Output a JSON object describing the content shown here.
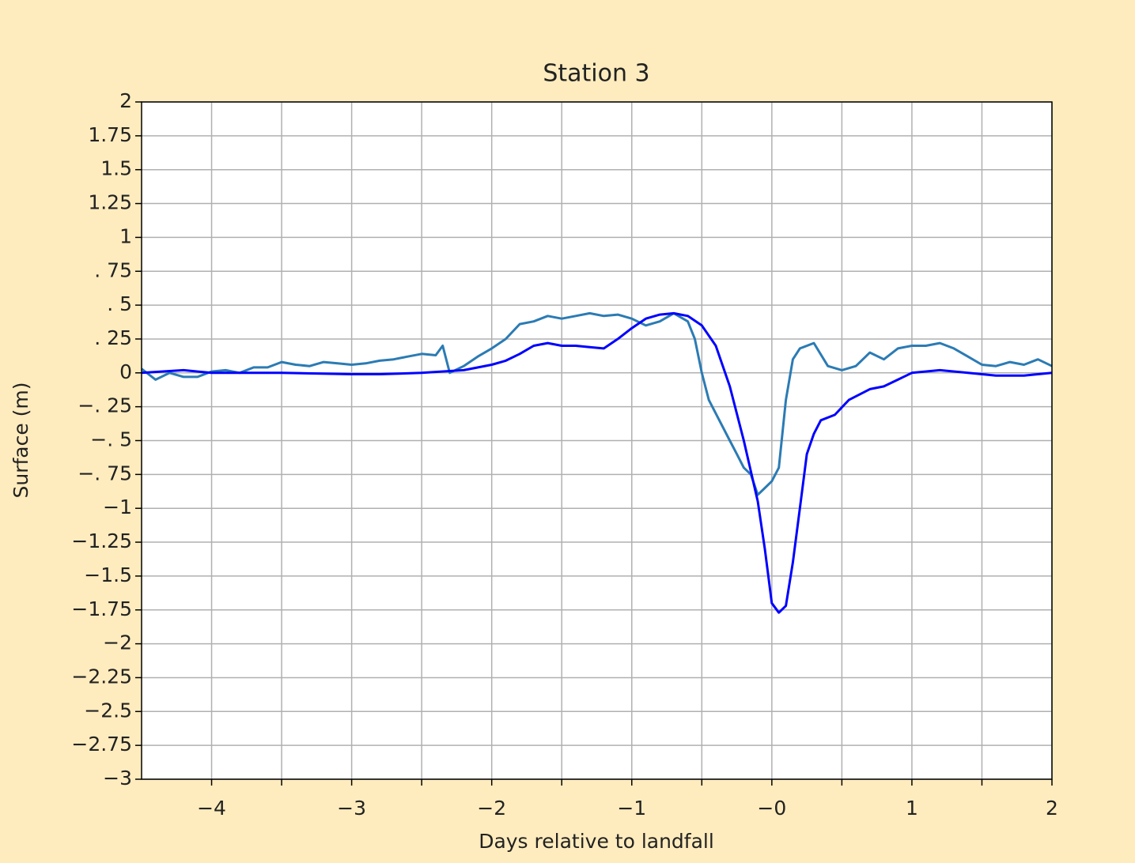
{
  "chart_data": {
    "type": "line",
    "title": "Station 3",
    "xlabel": "Days relative to landfall",
    "ylabel": "Surface (m)",
    "xlim": [
      -4.5,
      2
    ],
    "ylim": [
      -3,
      2
    ],
    "xticks": [
      {
        "value": -4,
        "label": "−4"
      },
      {
        "value": -3,
        "label": "−3"
      },
      {
        "value": -2,
        "label": "−2"
      },
      {
        "value": -1,
        "label": "−1"
      },
      {
        "value": 0,
        "label": "−0"
      },
      1,
      2
    ],
    "xminorticks": [
      -3.5,
      -2.5,
      -1.5,
      -0.5,
      0.5,
      1.5
    ],
    "yticks": [
      2,
      1.75,
      1.5,
      1.25,
      1,
      {
        "value": 0.75,
        "label": ". 75"
      },
      {
        "value": 0.5,
        "label": ". 5"
      },
      {
        "value": 0.25,
        "label": ". 25"
      },
      0,
      {
        "value": -0.25,
        "label": "−. 25"
      },
      {
        "value": -0.5,
        "label": "−. 5"
      },
      {
        "value": -0.75,
        "label": "−. 75"
      },
      {
        "value": -1,
        "label": "−1"
      },
      {
        "value": -1.25,
        "label": "−1.25"
      },
      {
        "value": -1.5,
        "label": "−1.5"
      },
      {
        "value": -1.75,
        "label": "−1.75"
      },
      {
        "value": -2,
        "label": "−2"
      },
      {
        "value": -2.25,
        "label": "−2.25"
      },
      {
        "value": -2.5,
        "label": "−2.5"
      },
      {
        "value": -2.75,
        "label": "−2.75"
      },
      {
        "value": -3,
        "label": "−3"
      }
    ],
    "grid": true,
    "series": [
      {
        "color": "#2b7bb4",
        "x": [
          -4.5,
          -4.4,
          -4.3,
          -4.2,
          -4.1,
          -4.0,
          -3.9,
          -3.8,
          -3.7,
          -3.6,
          -3.5,
          -3.4,
          -3.3,
          -3.2,
          -3.1,
          -3.0,
          -2.9,
          -2.8,
          -2.7,
          -2.6,
          -2.5,
          -2.4,
          -2.35,
          -2.3,
          -2.2,
          -2.1,
          -2.0,
          -1.9,
          -1.8,
          -1.7,
          -1.6,
          -1.5,
          -1.4,
          -1.3,
          -1.2,
          -1.1,
          -1.0,
          -0.9,
          -0.8,
          -0.7,
          -0.6,
          -0.55,
          -0.5,
          -0.45,
          -0.4,
          -0.3,
          -0.25,
          -0.2,
          -0.15,
          -0.1,
          -0.05,
          0.0,
          0.05,
          0.1,
          0.15,
          0.2,
          0.3,
          0.4,
          0.5,
          0.6,
          0.7,
          0.8,
          0.9,
          1.0,
          1.1,
          1.2,
          1.3,
          1.4,
          1.5,
          1.6,
          1.7,
          1.8,
          1.9,
          2.0
        ],
        "values": [
          0.03,
          -0.05,
          0.0,
          -0.03,
          -0.03,
          0.01,
          0.02,
          0.0,
          0.04,
          0.04,
          0.08,
          0.06,
          0.05,
          0.08,
          0.07,
          0.06,
          0.07,
          0.09,
          0.1,
          0.12,
          0.14,
          0.13,
          0.2,
          0.0,
          0.05,
          0.12,
          0.18,
          0.25,
          0.36,
          0.38,
          0.42,
          0.4,
          0.42,
          0.44,
          0.42,
          0.43,
          0.4,
          0.35,
          0.38,
          0.44,
          0.38,
          0.25,
          0.0,
          -0.2,
          -0.3,
          -0.5,
          -0.6,
          -0.7,
          -0.75,
          -0.9,
          -0.85,
          -0.8,
          -0.7,
          -0.2,
          0.1,
          0.18,
          0.22,
          0.05,
          0.02,
          0.05,
          0.15,
          0.1,
          0.18,
          0.2,
          0.2,
          0.22,
          0.18,
          0.12,
          0.06,
          0.05,
          0.08,
          0.06,
          0.1,
          0.05
        ]
      },
      {
        "color": "#0000ff",
        "x": [
          -4.5,
          -4.2,
          -4.0,
          -3.5,
          -3.0,
          -2.8,
          -2.5,
          -2.2,
          -2.0,
          -1.9,
          -1.8,
          -1.7,
          -1.6,
          -1.5,
          -1.4,
          -1.3,
          -1.2,
          -1.1,
          -1.0,
          -0.9,
          -0.8,
          -0.7,
          -0.6,
          -0.5,
          -0.4,
          -0.3,
          -0.2,
          -0.1,
          -0.05,
          0.0,
          0.05,
          0.1,
          0.15,
          0.2,
          0.25,
          0.3,
          0.35,
          0.45,
          0.55,
          0.7,
          0.8,
          0.9,
          1.0,
          1.2,
          1.4,
          1.6,
          1.8,
          2.0
        ],
        "values": [
          0,
          0.02,
          0.0,
          0.0,
          -0.01,
          -0.01,
          0.0,
          0.02,
          0.06,
          0.09,
          0.14,
          0.2,
          0.22,
          0.2,
          0.2,
          0.19,
          0.18,
          0.25,
          0.33,
          0.4,
          0.43,
          0.44,
          0.42,
          0.35,
          0.2,
          -0.1,
          -0.5,
          -0.95,
          -1.3,
          -1.7,
          -1.77,
          -1.72,
          -1.4,
          -1.0,
          -0.6,
          -0.45,
          -0.35,
          -0.31,
          -0.2,
          -0.12,
          -0.1,
          -0.05,
          0.0,
          0.02,
          0.0,
          -0.02,
          -0.02,
          0.0
        ]
      }
    ]
  }
}
